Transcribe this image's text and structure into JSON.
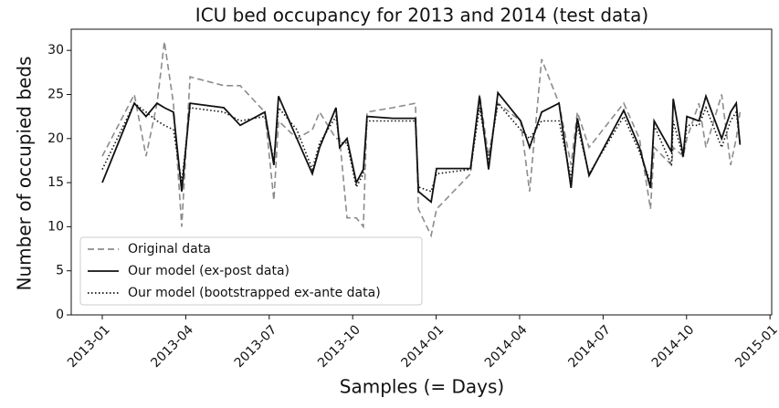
{
  "chart_data": {
    "type": "line",
    "title": "ICU bed occupancy for 2013 and 2014 (test data)",
    "x_label": "Samples (= Days)",
    "y_label": "Number of occupied beds",
    "x": [
      2013.0,
      2013.096,
      2013.131,
      2013.164,
      2013.186,
      2013.213,
      2013.238,
      2013.263,
      2013.364,
      2013.413,
      2013.487,
      2013.514,
      2013.528,
      2013.583,
      2013.629,
      2013.651,
      2013.7,
      2013.711,
      2013.733,
      2013.761,
      2013.782,
      2013.793,
      2013.87,
      2013.938,
      2013.947,
      2013.985,
      2014.001,
      2014.103,
      2014.13,
      2014.157,
      2014.185,
      2014.253,
      2014.28,
      2014.316,
      2014.368,
      2014.404,
      2014.423,
      2014.458,
      2014.562,
      2014.609,
      2014.642,
      2014.653,
      2014.705,
      2014.71,
      2014.74,
      2014.751,
      2014.787,
      2014.808,
      2014.855,
      2014.882,
      2014.899,
      2014.91
    ],
    "series": [
      {
        "name": "Original data",
        "color": "#8c8c8c",
        "dash": "dashed",
        "values": [
          18,
          25,
          18,
          24,
          31,
          24,
          10,
          27,
          26,
          26,
          23,
          13,
          22,
          20,
          21,
          23,
          20,
          20,
          11,
          11,
          10,
          23,
          23.5,
          24,
          12,
          9,
          12,
          16,
          25,
          18,
          24,
          22,
          14,
          29,
          24,
          17,
          23,
          19,
          24,
          20,
          12,
          19,
          17,
          19,
          18,
          20,
          24,
          19,
          25,
          17,
          20,
          23
        ]
      },
      {
        "name": "Our model (ex-post data)",
        "color": "#111111",
        "dash": "solid",
        "values": [
          15,
          24,
          22.5,
          24,
          23.5,
          23,
          14,
          24,
          23.5,
          21.5,
          23,
          17,
          24.8,
          20,
          16,
          19,
          23.5,
          19,
          20,
          15,
          16.5,
          22.5,
          22.3,
          22.3,
          14,
          12.8,
          16.6,
          16.6,
          24.8,
          16.5,
          25.2,
          22,
          19,
          23,
          24,
          14.4,
          22.3,
          15.8,
          23.2,
          19,
          14.4,
          22,
          18.5,
          24.5,
          18,
          22.5,
          22,
          24.8,
          20,
          23,
          24,
          19.3
        ]
      },
      {
        "name": "Our model (bootstrapped ex-ante data)",
        "color": "#111111",
        "dash": "dotted",
        "values": [
          16.5,
          24,
          23,
          22,
          21.5,
          21,
          15,
          23.5,
          23,
          22,
          22.5,
          17.5,
          23.5,
          21,
          16.5,
          19.5,
          22.5,
          19.5,
          19.5,
          14.5,
          16,
          22,
          22,
          22,
          14.5,
          14,
          16,
          16.5,
          23.5,
          17.5,
          24,
          21,
          20,
          22,
          22,
          15.5,
          21.5,
          16,
          22.5,
          18.5,
          15,
          21.5,
          17,
          22,
          17.8,
          21.5,
          21.5,
          23.5,
          19,
          22,
          23,
          19.5
        ]
      }
    ],
    "xlim": [
      2012.907,
      2015.005
    ],
    "xticks": [
      {
        "value": 2013.0,
        "label": "2013-01"
      },
      {
        "value": 2013.25,
        "label": "2013-04"
      },
      {
        "value": 2013.5,
        "label": "2013-07"
      },
      {
        "value": 2013.75,
        "label": "2013-10"
      },
      {
        "value": 2014.0,
        "label": "2014-01"
      },
      {
        "value": 2014.25,
        "label": "2014-04"
      },
      {
        "value": 2014.5,
        "label": "2014-07"
      },
      {
        "value": 2014.75,
        "label": "2014-10"
      },
      {
        "value": 2015.0,
        "label": "2015-01"
      }
    ],
    "ylim": [
      0,
      32.4
    ],
    "yticks": [
      0,
      5,
      10,
      15,
      20,
      25,
      30
    ],
    "legend": "lower left",
    "grid": false
  }
}
